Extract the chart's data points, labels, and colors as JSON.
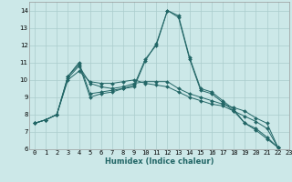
{
  "xlabel": "Humidex (Indice chaleur)",
  "bg_color": "#cce8e8",
  "grid_color": "#aacccc",
  "line_color": "#226666",
  "xlim": [
    -0.5,
    23
  ],
  "ylim": [
    6,
    14.5
  ],
  "xticks": [
    0,
    1,
    2,
    3,
    4,
    5,
    6,
    7,
    8,
    9,
    10,
    11,
    12,
    13,
    14,
    15,
    16,
    17,
    18,
    19,
    20,
    21,
    22,
    23
  ],
  "yticks": [
    6,
    7,
    8,
    9,
    10,
    11,
    12,
    13,
    14
  ],
  "lines": [
    {
      "x": [
        0,
        1,
        2,
        3,
        4,
        5,
        6,
        7,
        8,
        9,
        10,
        11,
        12,
        13,
        14,
        15,
        16,
        17,
        18,
        19,
        20,
        21,
        22
      ],
      "y": [
        7.5,
        7.7,
        8.0,
        10.2,
        10.9,
        9.0,
        9.2,
        9.3,
        9.5,
        9.6,
        11.1,
        12.1,
        14.0,
        13.7,
        11.3,
        9.5,
        9.3,
        8.8,
        8.3,
        7.5,
        7.2,
        6.7,
        6.1
      ]
    },
    {
      "x": [
        0,
        1,
        2,
        3,
        4,
        5,
        6,
        7,
        8,
        9,
        10,
        11,
        12,
        13,
        14,
        15,
        16,
        17,
        18,
        19,
        20,
        21,
        22
      ],
      "y": [
        7.5,
        7.7,
        8.0,
        10.2,
        11.0,
        9.2,
        9.3,
        9.4,
        9.5,
        9.7,
        11.2,
        12.0,
        14.0,
        13.6,
        11.2,
        9.4,
        9.2,
        8.7,
        8.2,
        7.5,
        7.1,
        6.6,
        6.1
      ]
    },
    {
      "x": [
        0,
        1,
        2,
        3,
        4,
        5,
        6,
        7,
        8,
        9,
        10,
        11,
        12,
        13,
        14,
        15,
        16,
        17,
        18,
        19,
        20,
        21,
        22
      ],
      "y": [
        7.5,
        7.7,
        8.0,
        10.1,
        10.8,
        9.8,
        9.6,
        9.5,
        9.6,
        9.8,
        9.9,
        9.9,
        9.9,
        9.5,
        9.2,
        9.0,
        8.8,
        8.6,
        8.4,
        8.2,
        7.8,
        7.5,
        6.1
      ]
    },
    {
      "x": [
        0,
        1,
        2,
        3,
        4,
        5,
        6,
        7,
        8,
        9,
        10,
        11,
        12,
        13,
        14,
        15,
        16,
        17,
        18,
        19,
        20,
        21,
        22
      ],
      "y": [
        7.5,
        7.7,
        8.0,
        10.0,
        10.5,
        9.9,
        9.8,
        9.8,
        9.9,
        10.0,
        9.8,
        9.7,
        9.6,
        9.3,
        9.0,
        8.8,
        8.6,
        8.5,
        8.2,
        7.9,
        7.6,
        7.2,
        6.1
      ]
    }
  ],
  "marker": "D",
  "marker_size": 2.0,
  "linewidth": 0.7,
  "tick_fontsize": 5.0,
  "xlabel_fontsize": 6.0
}
